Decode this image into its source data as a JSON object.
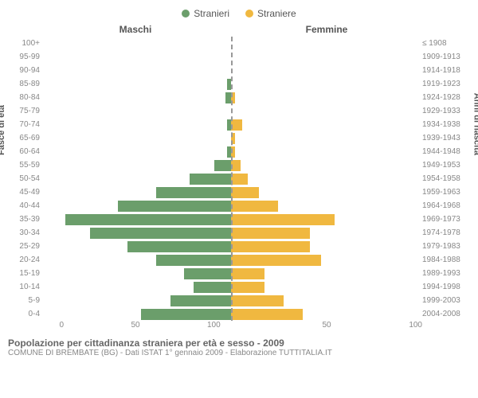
{
  "legend": {
    "male": "Stranieri",
    "female": "Straniere"
  },
  "colors": {
    "male": "#6b9e6b",
    "female": "#f0b840",
    "grid": "#eeeeee",
    "center": "#999999"
  },
  "headers": {
    "male": "Maschi",
    "female": "Femmine"
  },
  "y_left_title": "Fasce di età",
  "y_right_title": "Anni di nascita",
  "x_max": 100,
  "x_ticks": [
    "100",
    "50",
    "0",
    "50",
    "100"
  ],
  "rows": [
    {
      "age": "100+",
      "birth": "≤ 1908",
      "m": 0,
      "f": 0
    },
    {
      "age": "95-99",
      "birth": "1909-1913",
      "m": 0,
      "f": 0
    },
    {
      "age": "90-94",
      "birth": "1914-1918",
      "m": 0,
      "f": 0
    },
    {
      "age": "85-89",
      "birth": "1919-1923",
      "m": 2,
      "f": 0
    },
    {
      "age": "80-84",
      "birth": "1924-1928",
      "m": 3,
      "f": 2
    },
    {
      "age": "75-79",
      "birth": "1929-1933",
      "m": 0,
      "f": 0
    },
    {
      "age": "70-74",
      "birth": "1934-1938",
      "m": 2,
      "f": 6
    },
    {
      "age": "65-69",
      "birth": "1939-1943",
      "m": 0,
      "f": 2
    },
    {
      "age": "60-64",
      "birth": "1944-1948",
      "m": 2,
      "f": 2
    },
    {
      "age": "55-59",
      "birth": "1949-1953",
      "m": 9,
      "f": 5
    },
    {
      "age": "50-54",
      "birth": "1954-1958",
      "m": 22,
      "f": 9
    },
    {
      "age": "45-49",
      "birth": "1959-1963",
      "m": 40,
      "f": 15
    },
    {
      "age": "40-44",
      "birth": "1964-1968",
      "m": 60,
      "f": 25
    },
    {
      "age": "35-39",
      "birth": "1969-1973",
      "m": 88,
      "f": 55
    },
    {
      "age": "30-34",
      "birth": "1974-1978",
      "m": 75,
      "f": 42
    },
    {
      "age": "25-29",
      "birth": "1979-1983",
      "m": 55,
      "f": 42
    },
    {
      "age": "20-24",
      "birth": "1984-1988",
      "m": 40,
      "f": 48
    },
    {
      "age": "15-19",
      "birth": "1989-1993",
      "m": 25,
      "f": 18
    },
    {
      "age": "10-14",
      "birth": "1994-1998",
      "m": 20,
      "f": 18
    },
    {
      "age": "5-9",
      "birth": "1999-2003",
      "m": 32,
      "f": 28
    },
    {
      "age": "0-4",
      "birth": "2004-2008",
      "m": 48,
      "f": 38
    }
  ],
  "title": "Popolazione per cittadinanza straniera per età e sesso - 2009",
  "subtitle": "COMUNE DI BREMBATE (BG) - Dati ISTAT 1° gennaio 2009 - Elaborazione TUTTITALIA.IT"
}
